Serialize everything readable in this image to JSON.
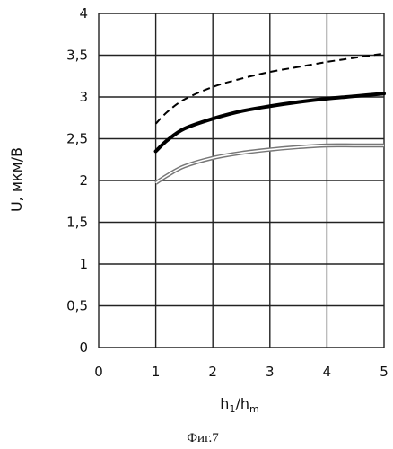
{
  "caption": "Фиг.7",
  "chart_data": {
    "type": "line",
    "title": "",
    "ylabel": "U, мкм/В",
    "xlabel_main": "h",
    "xlabel_sub1": "1",
    "xlabel_sep": "/h",
    "xlabel_sub2": "m",
    "xlim": [
      0,
      5
    ],
    "ylim": [
      0,
      4
    ],
    "x_ticks": [
      0,
      1,
      2,
      3,
      4,
      5
    ],
    "x_tick_labels": [
      "0",
      "1",
      "2",
      "3",
      "4",
      "5"
    ],
    "y_ticks": [
      0,
      0.5,
      1,
      1.5,
      2,
      2.5,
      3,
      3.5,
      4
    ],
    "y_tick_labels": [
      "0",
      "0,5",
      "1",
      "1,5",
      "2",
      "2,5",
      "3",
      "3,5",
      "4"
    ],
    "grid": {
      "vertical": true,
      "horizontal": true
    },
    "series": [
      {
        "style": "dashed",
        "color": "#000000",
        "x": [
          1,
          1.2,
          1.5,
          2,
          2.5,
          3,
          3.5,
          4,
          4.5,
          5
        ],
        "y": [
          2.68,
          2.82,
          2.97,
          3.12,
          3.22,
          3.3,
          3.36,
          3.42,
          3.47,
          3.52
        ]
      },
      {
        "style": "solid-thick",
        "color": "#000000",
        "x": [
          1,
          1.2,
          1.5,
          2,
          2.5,
          3,
          3.5,
          4,
          4.5,
          5
        ],
        "y": [
          2.35,
          2.48,
          2.62,
          2.74,
          2.83,
          2.89,
          2.94,
          2.98,
          3.01,
          3.04
        ]
      },
      {
        "style": "double-gray",
        "color": "#777777",
        "x": [
          1,
          1.2,
          1.5,
          2,
          2.5,
          3,
          3.5,
          4,
          4.5,
          5
        ],
        "y": [
          1.97,
          2.06,
          2.17,
          2.27,
          2.33,
          2.37,
          2.4,
          2.42,
          2.42,
          2.42
        ]
      }
    ]
  }
}
